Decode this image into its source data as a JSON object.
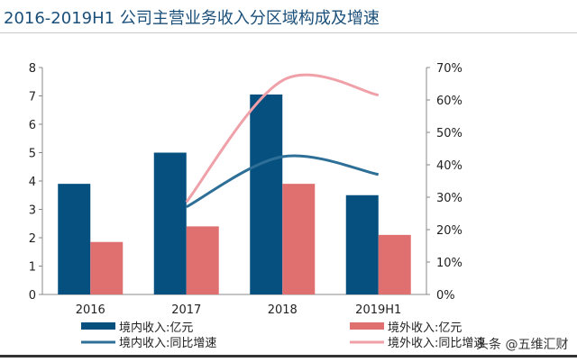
{
  "title": "2016-2019H1 公司主营业务收入分区域构成及增速",
  "watermark": "头条 @五维汇财",
  "chart_data": {
    "type": "bar",
    "title": "2016-2019H1 公司主营业务收入分区域构成及增速",
    "categories": [
      "2016",
      "2017",
      "2018",
      "2019H1"
    ],
    "ylim": [
      0,
      8
    ],
    "yticks": [
      "0",
      "1",
      "2",
      "3",
      "4",
      "5",
      "6",
      "7",
      "8"
    ],
    "y2lim": [
      0,
      70
    ],
    "y2ticks": [
      "0%",
      "10%",
      "20%",
      "30%",
      "40%",
      "50%",
      "60%",
      "70%"
    ],
    "legend_placement": "bottom",
    "grid": false,
    "series": [
      {
        "name": "境内收入:亿元",
        "type": "bar",
        "axis": "left",
        "color": "#05507f",
        "values": [
          3.9,
          5.0,
          7.05,
          3.5
        ]
      },
      {
        "name": "境外收入:亿元",
        "type": "bar",
        "axis": "left",
        "color": "#e07070",
        "values": [
          1.85,
          2.4,
          3.9,
          2.1
        ]
      },
      {
        "name": "境内收入:同比增速",
        "type": "line",
        "axis": "right",
        "color": "#2e6f98",
        "values": [
          null,
          27,
          42.5,
          37
        ]
      },
      {
        "name": "境外收入:同比增速",
        "type": "line",
        "axis": "right",
        "color": "#f0a0a8",
        "values": [
          null,
          28.5,
          66,
          61.5
        ]
      }
    ]
  }
}
